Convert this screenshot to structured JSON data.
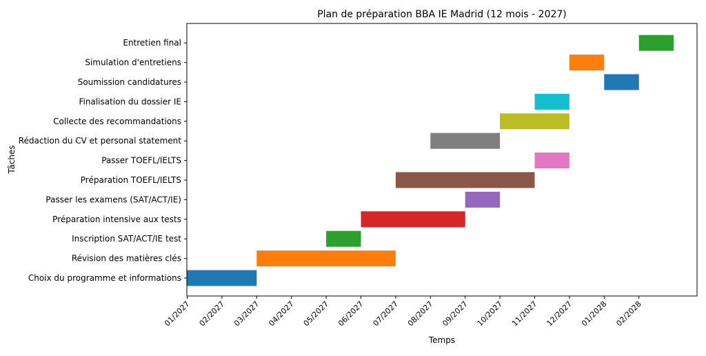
{
  "chart_data": {
    "type": "bar",
    "orientation": "horizontal",
    "title": "Plan de préparation BBA IE Madrid (12 mois - 2027)",
    "xlabel": "Temps",
    "ylabel": "Tâches",
    "x_scale": "time",
    "x_tick_format": "MM/YYYY",
    "x_tick_labels": [
      "01/2027",
      "02/2027",
      "03/2027",
      "04/2027",
      "05/2027",
      "06/2027",
      "07/2027",
      "08/2027",
      "09/2027",
      "10/2027",
      "11/2027",
      "12/2027",
      "01/2028",
      "02/2028"
    ],
    "xlim": [
      "2027-01",
      "2028-03"
    ],
    "grid": false,
    "legend": "none",
    "series": [
      {
        "task": "Choix du programme et informations",
        "start": "2027-01",
        "end": "2027-03",
        "color": "#1f77b4"
      },
      {
        "task": "Révision des matières clés",
        "start": "2027-03",
        "end": "2027-07",
        "color": "#ff7f0e"
      },
      {
        "task": "Inscription SAT/ACT/IE test",
        "start": "2027-05",
        "end": "2027-06",
        "color": "#2ca02c"
      },
      {
        "task": "Préparation intensive aux tests",
        "start": "2027-06",
        "end": "2027-09",
        "color": "#d62728"
      },
      {
        "task": "Passer les examens (SAT/ACT/IE)",
        "start": "2027-09",
        "end": "2027-10",
        "color": "#9467bd"
      },
      {
        "task": "Préparation TOEFL/IELTS",
        "start": "2027-07",
        "end": "2027-11",
        "color": "#8c564b"
      },
      {
        "task": "Passer TOEFL/IELTS",
        "start": "2027-11",
        "end": "2027-12",
        "color": "#e377c2"
      },
      {
        "task": "Rédaction du CV et personal statement",
        "start": "2027-08",
        "end": "2027-10",
        "color": "#7f7f7f"
      },
      {
        "task": "Collecte des recommandations",
        "start": "2027-10",
        "end": "2027-12",
        "color": "#bcbd22"
      },
      {
        "task": "Finalisation du dossier IE",
        "start": "2027-11",
        "end": "2027-12",
        "color": "#17becf"
      },
      {
        "task": "Soumission candidatures",
        "start": "2028-01",
        "end": "2028-02",
        "color": "#1f77b4"
      },
      {
        "task": "Simulation d'entretiens",
        "start": "2027-12",
        "end": "2028-01",
        "color": "#ff7f0e"
      },
      {
        "task": "Entretien final",
        "start": "2028-02",
        "end": "2028-03",
        "color": "#2ca02c"
      }
    ]
  }
}
